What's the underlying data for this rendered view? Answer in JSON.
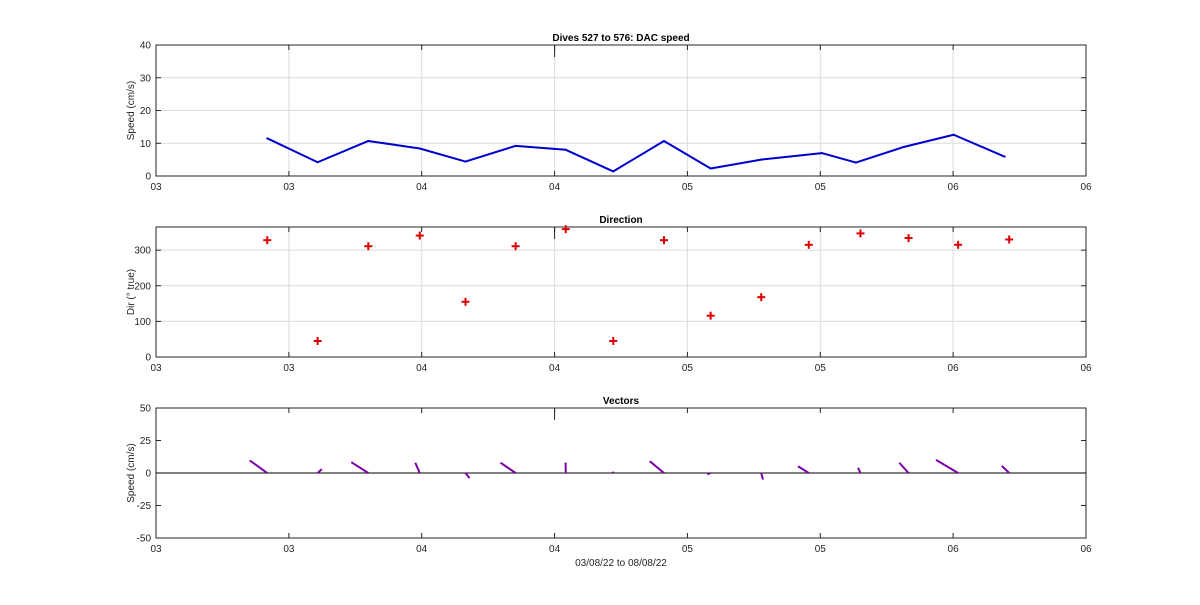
{
  "chart_data": [
    {
      "type": "line",
      "title": "Dives 527 to 576: DAC speed",
      "xlabel": "",
      "ylabel": "Speed (cm/s)",
      "ylim": [
        0,
        40
      ],
      "yticks": [
        "0",
        "10",
        "20",
        "30",
        "40"
      ],
      "xlim": [
        0,
        1
      ],
      "xticks": [
        {
          "pos": 0.0,
          "label": "03"
        },
        {
          "pos": 0.1429,
          "label": "03"
        },
        {
          "pos": 0.2857,
          "label": "04"
        },
        {
          "pos": 0.4286,
          "label": "04"
        },
        {
          "pos": 0.5714,
          "label": "05"
        },
        {
          "pos": 0.7143,
          "label": "05"
        },
        {
          "pos": 0.8571,
          "label": "06"
        },
        {
          "pos": 1.0,
          "label": "06"
        }
      ],
      "grid": true,
      "series": [
        {
          "color": "#0000cd",
          "x": [
            0.1196,
            0.1738,
            0.2283,
            0.2836,
            0.3328,
            0.3867,
            0.4406,
            0.4917,
            0.5462,
            0.5964,
            0.6508,
            0.7159,
            0.7526,
            0.8044,
            0.8577,
            0.9126
          ],
          "y": [
            11.5,
            4.2,
            10.7,
            8.4,
            4.4,
            9.2,
            8.0,
            1.4,
            10.7,
            2.3,
            5.0,
            7.0,
            4.1,
            8.9,
            12.6,
            5.9
          ]
        }
      ]
    },
    {
      "type": "scatter",
      "title": "Direction",
      "xlabel": "",
      "ylabel": "Dir (° true)",
      "ylim": [
        0,
        365
      ],
      "yticks": [
        "0",
        "100",
        "200",
        "300"
      ],
      "ytick_values": [
        0,
        100,
        200,
        300
      ],
      "xlim": [
        0,
        1
      ],
      "xticks": [
        {
          "pos": 0.0,
          "label": "03"
        },
        {
          "pos": 0.1429,
          "label": "03"
        },
        {
          "pos": 0.2857,
          "label": "04"
        },
        {
          "pos": 0.4286,
          "label": "04"
        },
        {
          "pos": 0.5714,
          "label": "05"
        },
        {
          "pos": 0.7143,
          "label": "05"
        },
        {
          "pos": 0.8571,
          "label": "06"
        },
        {
          "pos": 1.0,
          "label": "06"
        }
      ],
      "grid": true,
      "series": [
        {
          "color": "#dd0000",
          "marker": "+",
          "x": [
            0.1196,
            0.1738,
            0.2283,
            0.2836,
            0.3328,
            0.3867,
            0.4406,
            0.4917,
            0.5462,
            0.5964,
            0.6508,
            0.7019,
            0.7575,
            0.8092,
            0.8625,
            0.9174
          ],
          "y": [
            328,
            45,
            311,
            341,
            155,
            311,
            359,
            45,
            328,
            116,
            168,
            315,
            347,
            334,
            315,
            330
          ]
        }
      ]
    },
    {
      "type": "vector",
      "title": "Vectors",
      "xlabel": "03/08/22 to 08/08/22",
      "ylabel": "Speed (cm/s)",
      "ylim": [
        -50,
        50
      ],
      "yticks": [
        "-50",
        "-25",
        "0",
        "25",
        "50"
      ],
      "ytick_values": [
        -50,
        -25,
        0,
        25,
        50
      ],
      "xlim": [
        0,
        1
      ],
      "xticks": [
        {
          "pos": 0.0,
          "label": "03"
        },
        {
          "pos": 0.1429,
          "label": "03"
        },
        {
          "pos": 0.2857,
          "label": "04"
        },
        {
          "pos": 0.4286,
          "label": "04"
        },
        {
          "pos": 0.5714,
          "label": "05"
        },
        {
          "pos": 0.7143,
          "label": "05"
        },
        {
          "pos": 0.8571,
          "label": "06"
        },
        {
          "pos": 1.0,
          "label": "06"
        }
      ],
      "grid": false,
      "series": [
        {
          "color": "#7b00a6",
          "x": [
            0.1196,
            0.1738,
            0.2283,
            0.2836,
            0.3328,
            0.3867,
            0.4406,
            0.4917,
            0.5462,
            0.5964,
            0.6508,
            0.7019,
            0.7575,
            0.8092,
            0.8625,
            0.9174
          ],
          "u": [
            -0.0188,
            0.0045,
            -0.0183,
            -0.0048,
            0.0043,
            -0.0163,
            -0.0002,
            -0.0006,
            -0.0153,
            -0.0036,
            0.0019,
            -0.0116,
            -0.0026,
            -0.0099,
            -0.0238,
            -0.0079
          ],
          "v": [
            9.7,
            3.0,
            8.3,
            7.9,
            -4.0,
            7.9,
            8.0,
            1.0,
            9.1,
            -1.0,
            -5.0,
            5.2,
            4.0,
            7.9,
            10.1,
            5.5
          ]
        }
      ]
    }
  ]
}
